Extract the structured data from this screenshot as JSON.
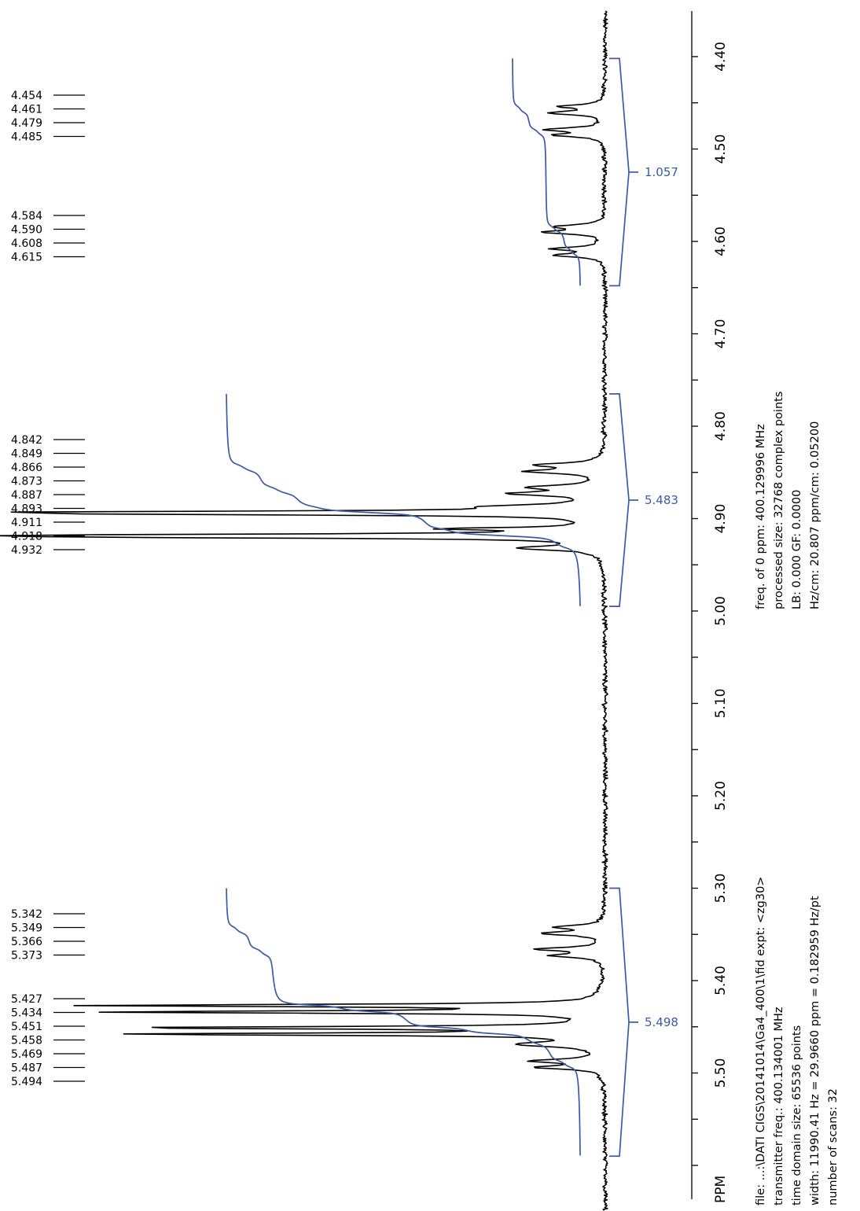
{
  "chart_data": {
    "type": "line",
    "title": "",
    "xlabel": "PPM",
    "ylabel": "",
    "xlim": [
      4.35,
      5.62
    ],
    "axis_ticks": [
      "4.40",
      "4.50",
      "4.60",
      "4.70",
      "4.80",
      "4.90",
      "5.00",
      "5.10",
      "5.20",
      "5.30",
      "5.40",
      "5.50"
    ],
    "colors": {
      "spectrum": "#000000",
      "integral": "#3a5ba8"
    },
    "peak_labels": [
      "4.454",
      "4.461",
      "4.479",
      "4.485",
      "4.584",
      "4.590",
      "4.608",
      "4.615",
      "4.842",
      "4.849",
      "4.866",
      "4.873",
      "4.887",
      "4.893",
      "4.911",
      "4.918",
      "4.932",
      "5.342",
      "5.349",
      "5.366",
      "5.373",
      "5.427",
      "5.434",
      "5.451",
      "5.458",
      "5.469",
      "5.487",
      "5.494"
    ],
    "integrals": [
      {
        "label": "1.057",
        "from": 4.402,
        "to": 4.648
      },
      {
        "label": "5.483",
        "from": 4.765,
        "to": 4.995
      },
      {
        "label": "5.498",
        "from": 5.3,
        "to": 5.59
      }
    ],
    "acquisition_info": [
      "file: ...:\\DATI CIGS\\20141014\\Ga4_400\\1\\fid   expt: <zg30>",
      "transmitter freq.: 400.134001 MHz",
      "time domain size: 65536 points",
      "width: 11990.41 Hz = 29.9660 ppm = 0.182959 Hz/pt",
      "number of scans: 32"
    ],
    "processing_info": [
      "freq. of 0 ppm: 400.129996 MHz",
      "processed size: 32768 complex points",
      "LB: 0.000    GF: 0.0000",
      "Hz/cm: 20.807    ppm/cm: 0.05200"
    ]
  }
}
